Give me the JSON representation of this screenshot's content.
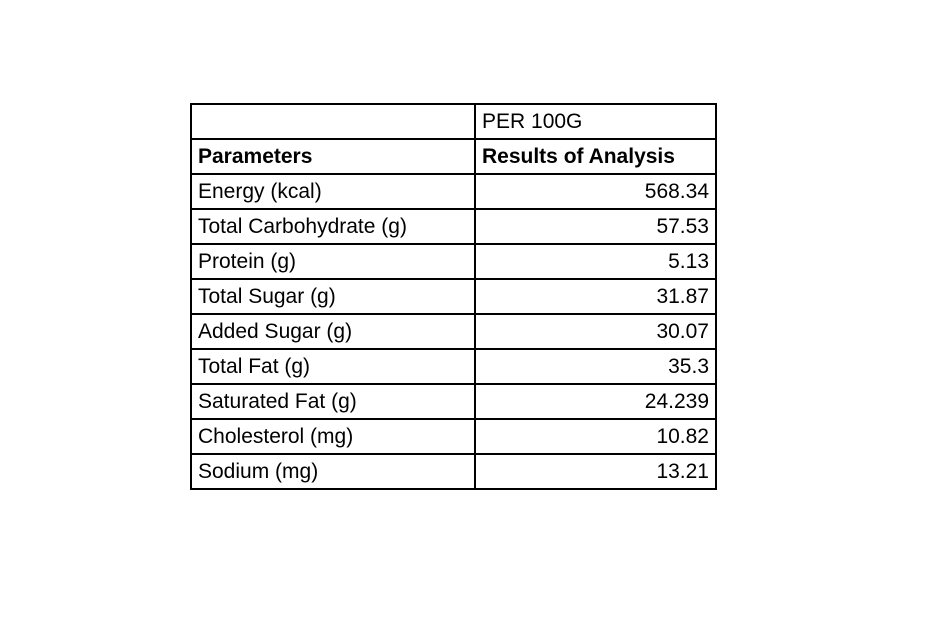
{
  "table": {
    "unit_header": "PER 100G",
    "col_parameters": "Parameters",
    "col_results": "Results of Analysis",
    "rows": [
      {
        "parameter": "Energy (kcal)",
        "value": "568.34"
      },
      {
        "parameter": "Total Carbohydrate (g)",
        "value": "57.53"
      },
      {
        "parameter": "Protein (g)",
        "value": "5.13"
      },
      {
        "parameter": "Total Sugar (g)",
        "value": "31.87"
      },
      {
        "parameter": "Added Sugar (g)",
        "value": "30.07"
      },
      {
        "parameter": "Total Fat (g)",
        "value": "35.3"
      },
      {
        "parameter": "Saturated Fat (g)",
        "value": "24.239"
      },
      {
        "parameter": "Cholesterol (mg)",
        "value": "10.82"
      },
      {
        "parameter": "Sodium (mg)",
        "value": "13.21"
      }
    ]
  }
}
